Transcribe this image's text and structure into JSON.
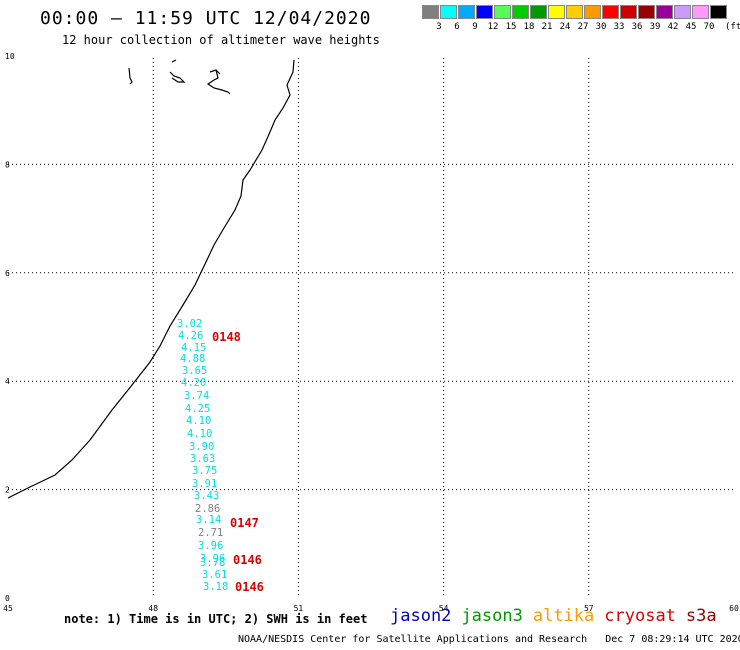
{
  "header": {
    "title": "00:00 — 11:59 UTC 12/04/2020",
    "subtitle": "12 hour collection of altimeter wave heights"
  },
  "legend": {
    "unit": "(ft)",
    "bins": [
      {
        "label": "3",
        "color": "#808080"
      },
      {
        "label": "6",
        "color": "#00ffff"
      },
      {
        "label": "9",
        "color": "#00aaff"
      },
      {
        "label": "12",
        "color": "#0000ff"
      },
      {
        "label": "15",
        "color": "#55ff55"
      },
      {
        "label": "18",
        "color": "#00cc00"
      },
      {
        "label": "21",
        "color": "#009900"
      },
      {
        "label": "24",
        "color": "#ffff00"
      },
      {
        "label": "27",
        "color": "#ffcc00"
      },
      {
        "label": "30",
        "color": "#ff9900"
      },
      {
        "label": "33",
        "color": "#ff0000"
      },
      {
        "label": "36",
        "color": "#cc0000"
      },
      {
        "label": "39",
        "color": "#990000"
      },
      {
        "label": "42",
        "color": "#990099"
      },
      {
        "label": "45",
        "color": "#cc99ff"
      },
      {
        "label": "70",
        "color": "#ff99ff"
      },
      {
        "label": "",
        "color": "#000000"
      }
    ]
  },
  "map": {
    "x_ticks": [
      "45",
      "48",
      "51",
      "54",
      "57",
      "60"
    ],
    "y_ticks": [
      "0",
      "2",
      "4",
      "6",
      "8",
      "10"
    ],
    "grid": "dotted",
    "coastline_color": "#000000",
    "observations": [
      {
        "value": "3.02",
        "color": "#00e0e0"
      },
      {
        "value": "4.26",
        "color": "#00e0e0"
      },
      {
        "value": "4.15",
        "color": "#00e0e0"
      },
      {
        "value": "4.88",
        "color": "#00e0e0"
      },
      {
        "value": "3.65",
        "color": "#00e0e0"
      },
      {
        "value": "4.20",
        "color": "#00e0e0"
      },
      {
        "value": "3.74",
        "color": "#00e0e0"
      },
      {
        "value": "4.25",
        "color": "#00e0e0"
      },
      {
        "value": "4.10",
        "color": "#00e0e0"
      },
      {
        "value": "4.10",
        "color": "#00e0e0"
      },
      {
        "value": "3.90",
        "color": "#00e0e0"
      },
      {
        "value": "3.63",
        "color": "#00e0e0"
      },
      {
        "value": "3.75",
        "color": "#00e0e0"
      },
      {
        "value": "3.91",
        "color": "#00e0e0"
      },
      {
        "value": "3.43",
        "color": "#00e0e0"
      },
      {
        "value": "2.86",
        "color": "#808080"
      },
      {
        "value": "3.14",
        "color": "#00e0e0"
      },
      {
        "value": "2.71",
        "color": "#808080"
      },
      {
        "value": "3.96",
        "color": "#00e0e0"
      },
      {
        "value": "3.96",
        "color": "#00e0e0"
      },
      {
        "value": "3.78",
        "color": "#00e0e0"
      },
      {
        "value": "3.61",
        "color": "#00e0e0"
      },
      {
        "value": "3.18",
        "color": "#00e0e0"
      }
    ],
    "pass_labels": [
      {
        "text": "0148",
        "color": "#dd0000"
      },
      {
        "text": "0147",
        "color": "#dd0000"
      },
      {
        "text": "0146",
        "color": "#dd0000"
      },
      {
        "text": "0146",
        "color": "#dd0000"
      }
    ]
  },
  "footer": {
    "note": "note: 1) Time is in UTC; 2) SWH is in feet",
    "satellites": [
      {
        "name": "jason2",
        "color": "#0000cc"
      },
      {
        "name": "jason3",
        "color": "#009900"
      },
      {
        "name": "altika",
        "color": "#ff9900"
      },
      {
        "name": "cryosat",
        "color": "#dd0000"
      },
      {
        "name": "s3a",
        "color": "#990000"
      }
    ],
    "credit": "NOAA/NESDIS Center for Satellite Applications and Research",
    "timestamp": "Dec 7 08:29:14 UTC 2020"
  }
}
